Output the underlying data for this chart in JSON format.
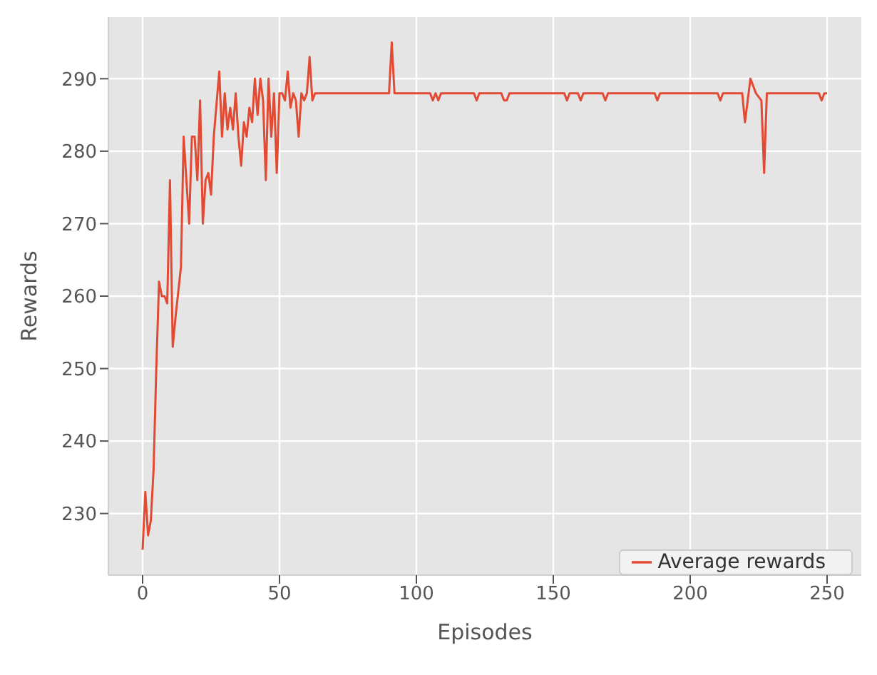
{
  "chart_data": {
    "type": "line",
    "xlabel": "Episodes",
    "ylabel": "Rewards",
    "x": [
      0,
      1,
      2,
      3,
      4,
      5,
      6,
      7,
      8,
      9,
      10,
      11,
      12,
      14,
      15,
      17,
      18,
      19,
      20,
      21,
      22,
      23,
      24,
      25,
      26,
      28,
      29,
      30,
      31,
      32,
      33,
      34,
      35,
      36,
      37,
      38,
      39,
      40,
      41,
      42,
      43,
      44,
      45,
      46,
      47,
      48,
      49,
      50,
      51,
      52,
      53,
      54,
      55,
      56,
      57,
      58,
      59,
      60,
      61,
      62,
      63,
      90,
      91,
      92,
      105,
      106,
      107,
      108,
      109,
      121,
      122,
      123,
      131,
      132,
      133,
      134,
      154,
      155,
      156,
      159,
      160,
      161,
      168,
      169,
      170,
      187,
      188,
      189,
      210,
      211,
      212,
      219,
      220,
      222,
      224,
      226,
      227,
      228,
      247,
      248,
      249,
      250
    ],
    "series": [
      {
        "name": "Average rewards",
        "color": "#e24a33",
        "values": [
          225,
          233,
          227,
          229,
          236,
          250,
          262,
          260,
          260,
          259,
          276,
          253,
          257,
          264,
          282,
          270,
          282,
          282,
          276,
          287,
          270,
          276,
          277,
          274,
          282,
          291,
          282,
          288,
          283,
          286,
          283,
          288,
          282,
          278,
          284,
          282,
          286,
          284,
          290,
          285,
          290,
          287,
          276,
          290,
          282,
          288,
          277,
          288,
          288,
          287,
          291,
          286,
          288,
          287,
          282,
          288,
          287,
          288,
          293,
          287,
          288,
          288,
          295,
          288,
          288,
          287,
          288,
          287,
          288,
          288,
          287,
          288,
          288,
          287,
          287,
          288,
          288,
          287,
          288,
          288,
          287,
          288,
          288,
          287,
          288,
          288,
          287,
          288,
          288,
          287,
          288,
          288,
          284,
          290,
          288,
          287,
          277,
          288,
          288,
          287,
          288,
          288
        ]
      }
    ],
    "xlim": [
      -12.5,
      262.5
    ],
    "xticks": [
      0,
      50,
      100,
      150,
      200,
      250
    ],
    "ylim": [
      221.5,
      298.5
    ],
    "yticks": [
      230,
      240,
      250,
      260,
      270,
      280,
      290
    ],
    "grid": true,
    "legend": "bottom right",
    "marker": "none",
    "line_style": "solid"
  }
}
